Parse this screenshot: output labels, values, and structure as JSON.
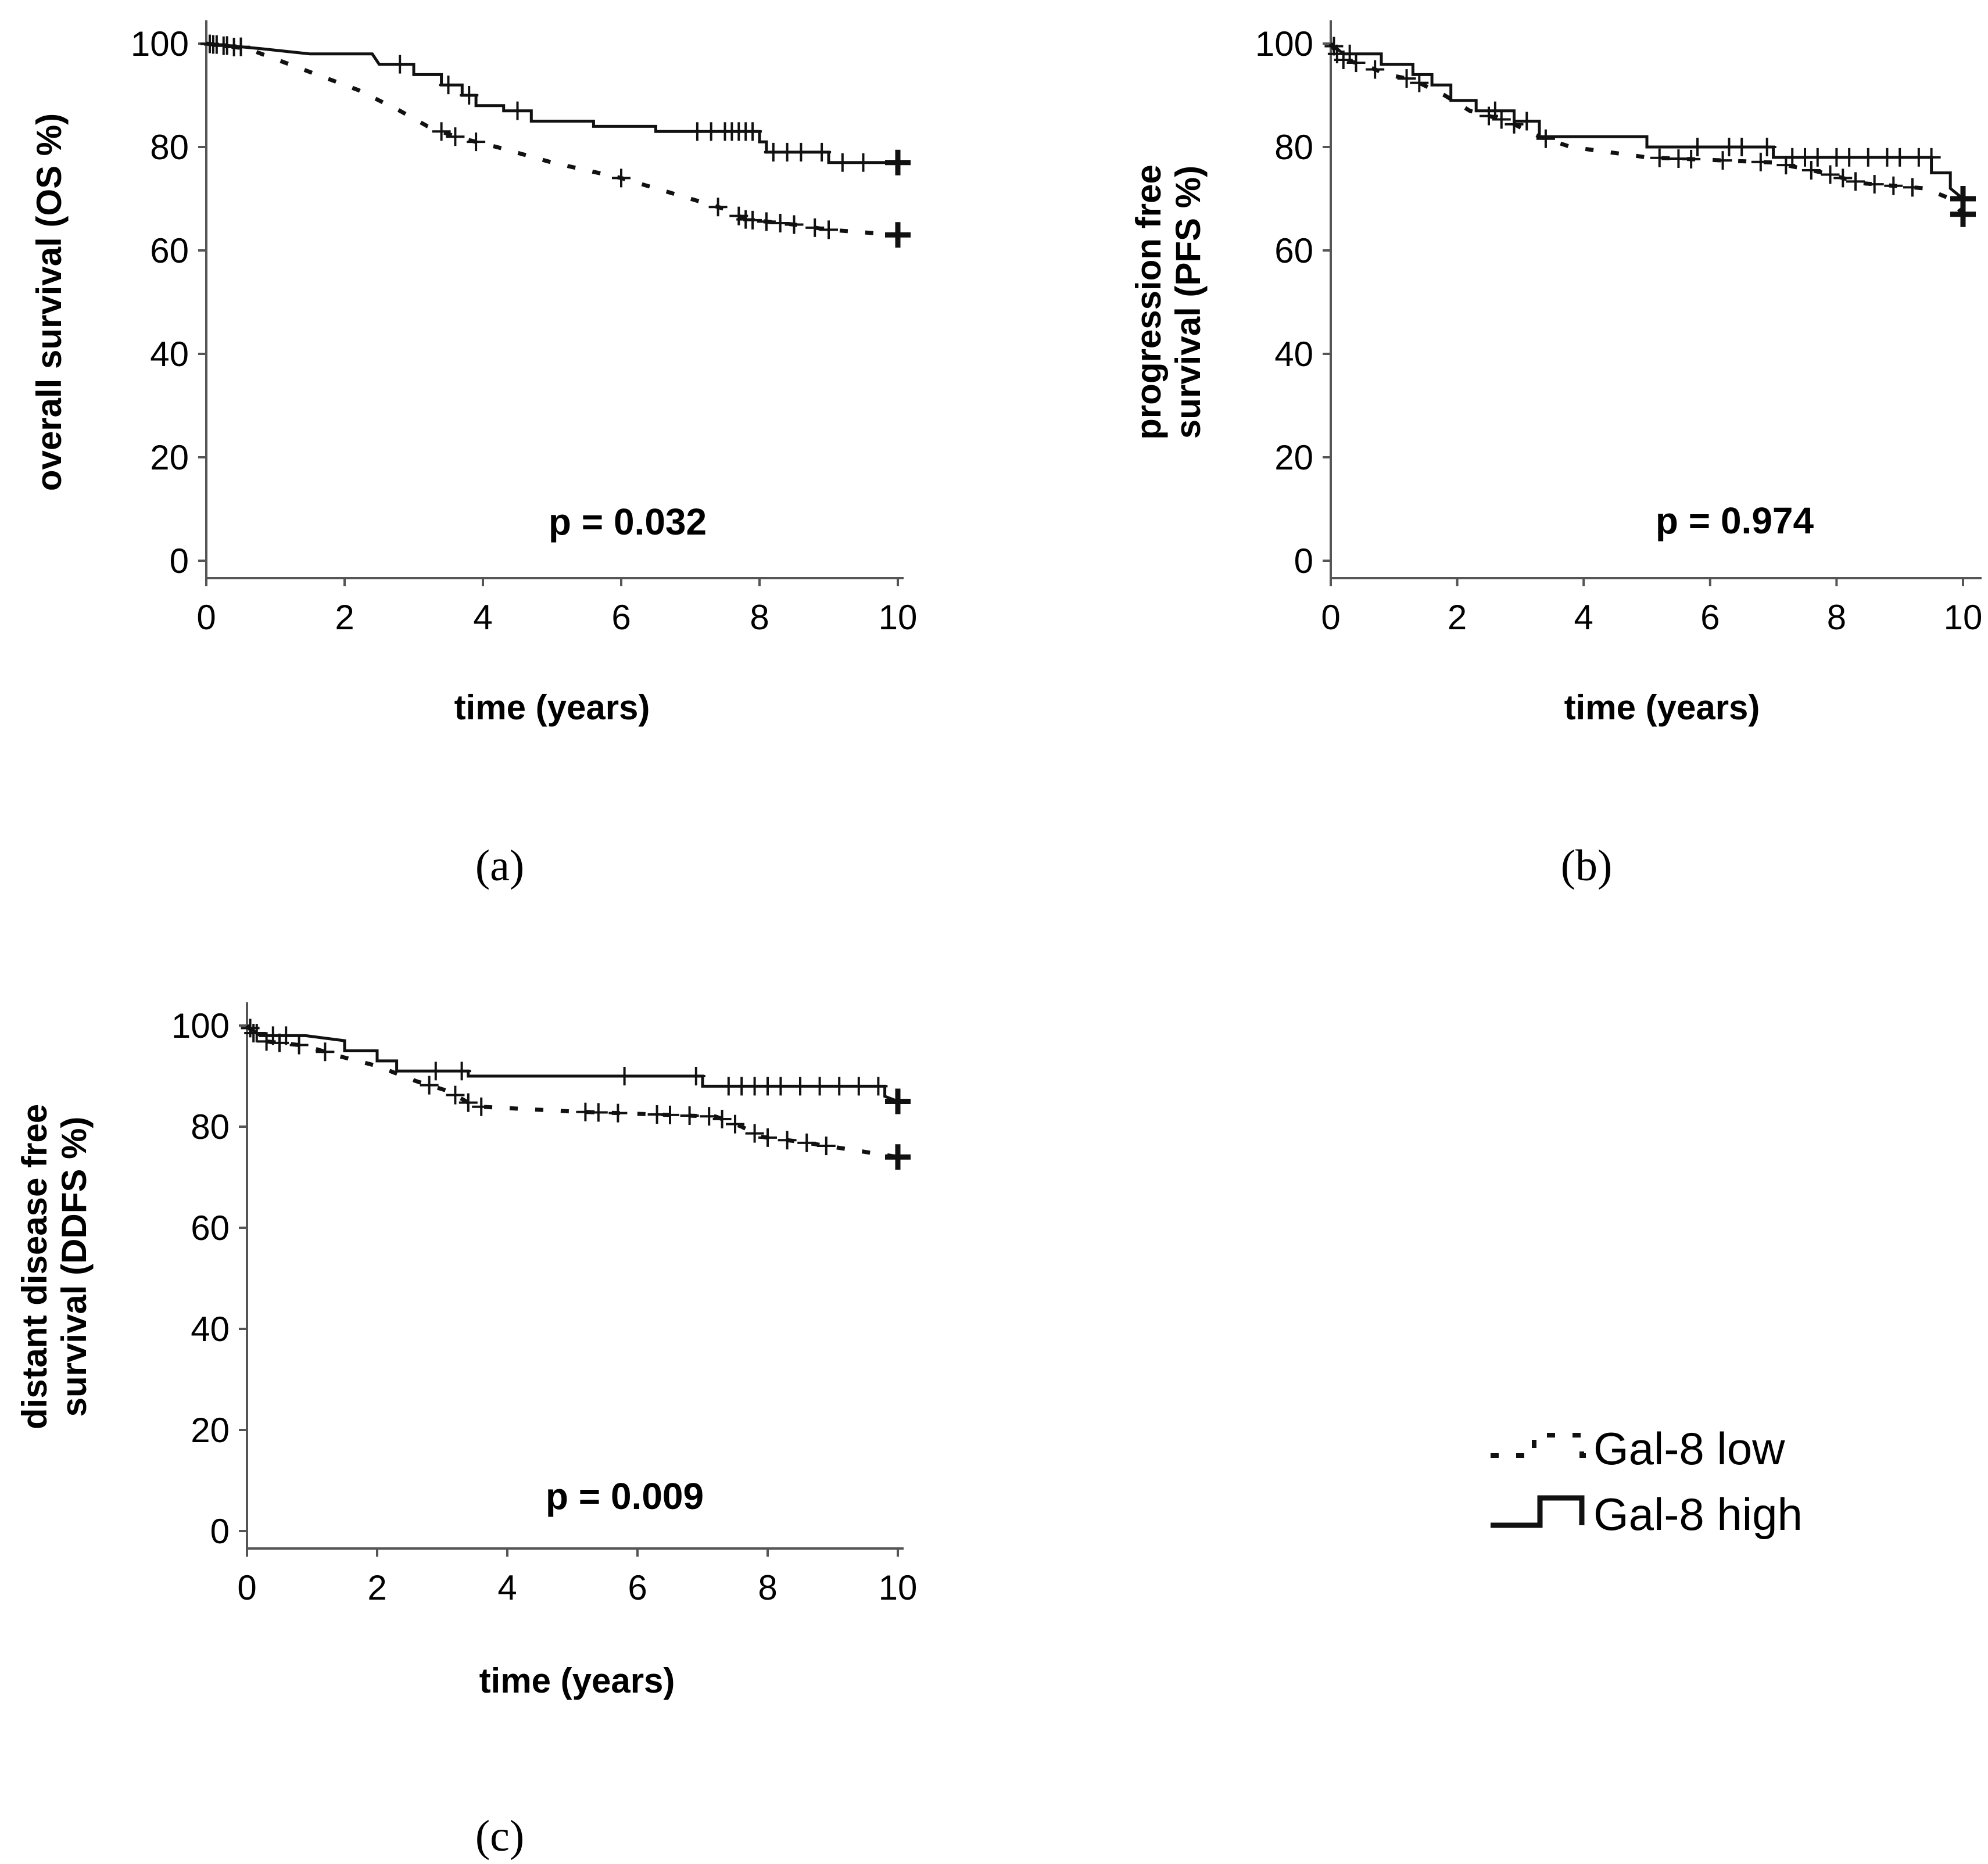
{
  "legend": {
    "low_label": "Gal-8 low",
    "high_label": "Gal-8 high"
  },
  "chart_data": [
    {
      "id": "a",
      "type": "line",
      "panel_label": "(a)",
      "xlabel": "time (years)",
      "ylabel": [
        "overall survival (OS %)"
      ],
      "annotation": "p = 0.032",
      "xlim": [
        0,
        10
      ],
      "ylim": [
        0,
        100
      ],
      "xticks": [
        0,
        2,
        4,
        6,
        8,
        10
      ],
      "yticks": [
        0,
        20,
        40,
        60,
        80,
        100
      ],
      "series": [
        {
          "name": "Gal-8 low",
          "points": [
            [
              0,
              100
            ],
            [
              0.6,
              99
            ],
            [
              1.0,
              97
            ],
            [
              1.6,
              94
            ],
            [
              2.2,
              91
            ],
            [
              2.8,
              87
            ],
            [
              3.2,
              84
            ],
            [
              3.6,
              82
            ],
            [
              4.2,
              80
            ],
            [
              5.0,
              77
            ],
            [
              6.0,
              74
            ],
            [
              7.0,
              70
            ],
            [
              7.5,
              68
            ],
            [
              7.8,
              66
            ],
            [
              8.5,
              65
            ],
            [
              9.0,
              64
            ],
            [
              10.0,
              63
            ]
          ],
          "censors": [
            0.1,
            0.25,
            0.4,
            3.4,
            3.6,
            3.9,
            6.0,
            7.4,
            7.7,
            7.8,
            7.9,
            8.1,
            8.3,
            8.5,
            8.8,
            9.0,
            10.0
          ]
        },
        {
          "name": "Gal-8 high",
          "points": [
            [
              0,
              100
            ],
            [
              0.8,
              99
            ],
            [
              1.5,
              98
            ],
            [
              2.4,
              98
            ],
            [
              2.5,
              96
            ],
            [
              3.0,
              96
            ],
            [
              3.0,
              94
            ],
            [
              3.4,
              94
            ],
            [
              3.4,
              92
            ],
            [
              3.7,
              92
            ],
            [
              3.7,
              90
            ],
            [
              3.9,
              90
            ],
            [
              3.9,
              88
            ],
            [
              4.3,
              88
            ],
            [
              4.3,
              87
            ],
            [
              4.7,
              87
            ],
            [
              4.7,
              85
            ],
            [
              5.6,
              85
            ],
            [
              5.6,
              84
            ],
            [
              6.5,
              84
            ],
            [
              6.5,
              83
            ],
            [
              8.0,
              83
            ],
            [
              8.0,
              81
            ],
            [
              8.1,
              81
            ],
            [
              8.1,
              79
            ],
            [
              9.0,
              79
            ],
            [
              9.0,
              77
            ],
            [
              10.0,
              77
            ]
          ],
          "censors": [
            0.05,
            0.15,
            0.3,
            0.5,
            2.8,
            3.5,
            3.8,
            4.5,
            7.1,
            7.3,
            7.5,
            7.6,
            7.7,
            7.8,
            7.9,
            8.2,
            8.4,
            8.6,
            8.9,
            9.2,
            9.5,
            10.0
          ]
        }
      ]
    },
    {
      "id": "b",
      "type": "line",
      "panel_label": "(b)",
      "xlabel": "time (years)",
      "ylabel": [
        "progression free",
        "survival (PFS %)"
      ],
      "annotation": "p = 0.974",
      "xlim": [
        0,
        10
      ],
      "ylim": [
        0,
        100
      ],
      "xticks": [
        0,
        2,
        4,
        6,
        8,
        10
      ],
      "yticks": [
        0,
        20,
        40,
        60,
        80,
        100
      ],
      "series": [
        {
          "name": "Gal-8 low",
          "points": [
            [
              0,
              100
            ],
            [
              0.15,
              97
            ],
            [
              0.5,
              96
            ],
            [
              0.9,
              94
            ],
            [
              1.3,
              93
            ],
            [
              1.8,
              90
            ],
            [
              2.2,
              87
            ],
            [
              2.8,
              85
            ],
            [
              3.3,
              82
            ],
            [
              3.8,
              80
            ],
            [
              5.0,
              78
            ],
            [
              7.0,
              77
            ],
            [
              7.8,
              75
            ],
            [
              8.4,
              73
            ],
            [
              9.4,
              72
            ],
            [
              9.8,
              70
            ],
            [
              10.0,
              67
            ]
          ],
          "censors": [
            0.1,
            0.2,
            0.4,
            0.7,
            1.2,
            1.4,
            2.5,
            2.7,
            2.9,
            3.4,
            5.2,
            5.5,
            5.7,
            6.2,
            6.8,
            7.2,
            7.6,
            7.9,
            8.1,
            8.3,
            8.6,
            8.9,
            9.2,
            10.0
          ]
        },
        {
          "name": "Gal-8 high",
          "points": [
            [
              0,
              100
            ],
            [
              0.2,
              98
            ],
            [
              0.8,
              98
            ],
            [
              0.8,
              96
            ],
            [
              1.3,
              96
            ],
            [
              1.3,
              94
            ],
            [
              1.6,
              94
            ],
            [
              1.6,
              92
            ],
            [
              1.9,
              92
            ],
            [
              1.9,
              89
            ],
            [
              2.3,
              89
            ],
            [
              2.3,
              87
            ],
            [
              2.9,
              87
            ],
            [
              2.9,
              85
            ],
            [
              3.3,
              85
            ],
            [
              3.3,
              82
            ],
            [
              5.0,
              82
            ],
            [
              5.0,
              80
            ],
            [
              7.0,
              80
            ],
            [
              7.0,
              78
            ],
            [
              9.5,
              78
            ],
            [
              9.5,
              75
            ],
            [
              9.8,
              75
            ],
            [
              9.8,
              72
            ],
            [
              10.0,
              70
            ]
          ],
          "censors": [
            0.05,
            0.3,
            2.6,
            3.1,
            5.8,
            6.3,
            6.5,
            6.9,
            7.3,
            7.5,
            7.7,
            8.0,
            8.2,
            8.5,
            8.8,
            9.0,
            9.3,
            9.5,
            10.0
          ]
        }
      ]
    },
    {
      "id": "c",
      "type": "line",
      "panel_label": "(c)",
      "xlabel": "time (years)",
      "ylabel": [
        "distant disease free",
        "survival (DDFS %)"
      ],
      "annotation": "p = 0.009",
      "xlim": [
        0,
        10
      ],
      "ylim": [
        0,
        100
      ],
      "xticks": [
        0,
        2,
        4,
        6,
        8,
        10
      ],
      "yticks": [
        0,
        20,
        40,
        60,
        80,
        100
      ],
      "series": [
        {
          "name": "Gal-8 low",
          "points": [
            [
              0,
              100
            ],
            [
              0.2,
              97
            ],
            [
              0.9,
              96
            ],
            [
              1.4,
              94
            ],
            [
              2.0,
              92
            ],
            [
              2.6,
              89
            ],
            [
              3.1,
              87
            ],
            [
              3.5,
              84
            ],
            [
              5.0,
              83
            ],
            [
              7.2,
              82
            ],
            [
              7.6,
              80
            ],
            [
              7.9,
              78
            ],
            [
              8.5,
              77
            ],
            [
              9.0,
              76
            ],
            [
              10.0,
              74
            ]
          ],
          "censors": [
            0.1,
            0.3,
            0.5,
            0.8,
            1.2,
            2.8,
            3.2,
            3.4,
            3.6,
            5.2,
            5.4,
            5.7,
            6.3,
            6.5,
            6.8,
            7.1,
            7.3,
            7.5,
            7.8,
            8.0,
            8.3,
            8.6,
            8.9,
            10.0
          ]
        },
        {
          "name": "Gal-8 high",
          "points": [
            [
              0,
              100
            ],
            [
              0.2,
              98
            ],
            [
              0.9,
              98
            ],
            [
              1.5,
              97
            ],
            [
              1.5,
              95
            ],
            [
              2.0,
              95
            ],
            [
              2.0,
              93
            ],
            [
              2.3,
              93
            ],
            [
              2.3,
              91
            ],
            [
              3.4,
              91
            ],
            [
              3.4,
              90
            ],
            [
              7.0,
              90
            ],
            [
              7.0,
              88
            ],
            [
              9.8,
              88
            ],
            [
              9.8,
              86
            ],
            [
              10.0,
              85
            ]
          ],
          "censors": [
            0.05,
            0.15,
            0.4,
            0.6,
            2.9,
            3.3,
            5.8,
            6.9,
            7.4,
            7.6,
            7.8,
            8.0,
            8.2,
            8.5,
            8.8,
            9.1,
            9.4,
            9.7,
            10.0
          ]
        }
      ]
    }
  ]
}
